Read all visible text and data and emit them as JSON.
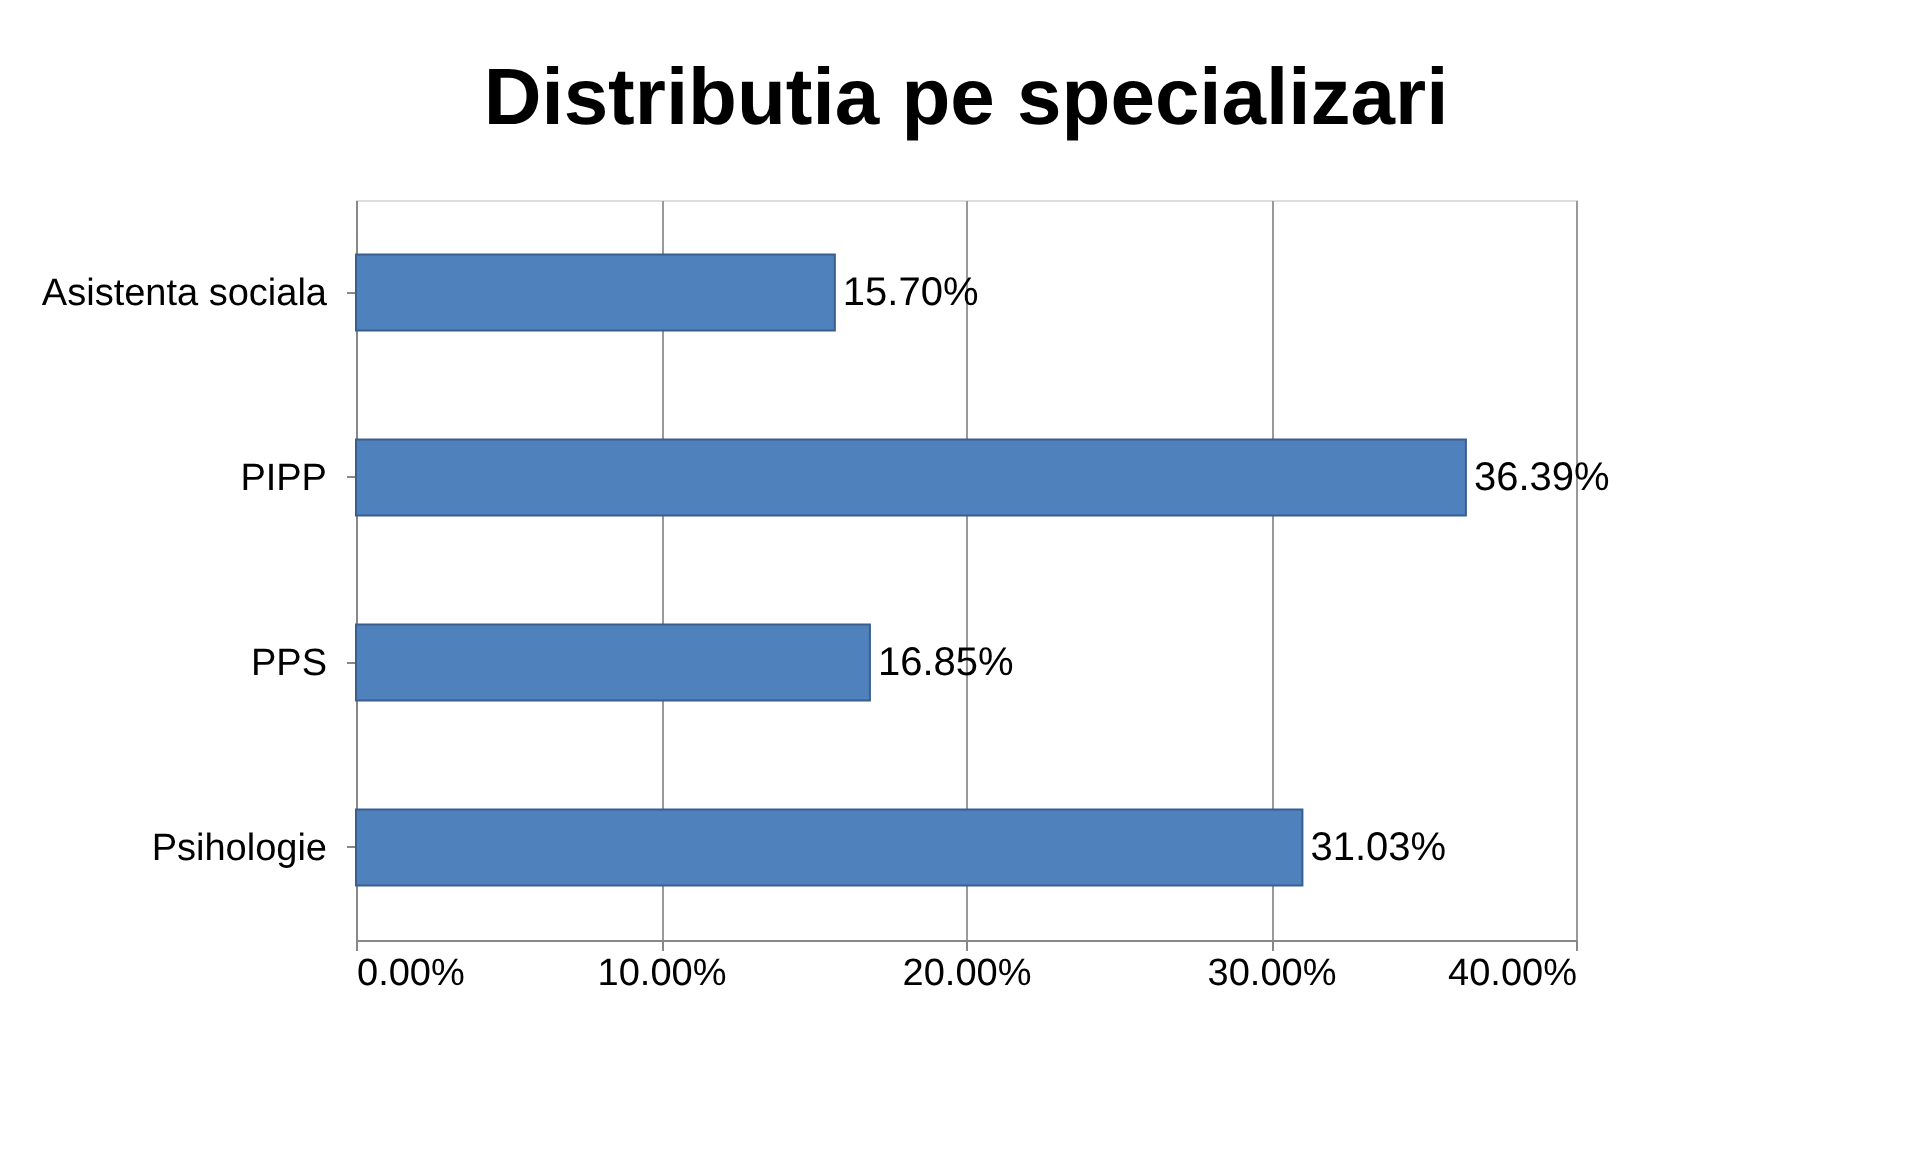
{
  "chart_data": {
    "type": "bar",
    "orientation": "horizontal",
    "title": "Distributia pe specializari",
    "categories": [
      "Asistenta sociala",
      "PIPP",
      "PPS",
      "Psihologie"
    ],
    "values": [
      15.7,
      36.39,
      16.85,
      31.03
    ],
    "value_labels": [
      "15.70%",
      "36.39%",
      "16.85%",
      "31.03%"
    ],
    "color": "#4f81bd",
    "xlim": [
      0,
      40
    ],
    "xticks": [
      {
        "value": 0,
        "label": "0.00%"
      },
      {
        "value": 10,
        "label": "10.00%"
      },
      {
        "value": 20,
        "label": "20.00%"
      },
      {
        "value": 30,
        "label": "30.00%"
      },
      {
        "value": 40,
        "label": "40.00%"
      }
    ],
    "grid": "x"
  }
}
